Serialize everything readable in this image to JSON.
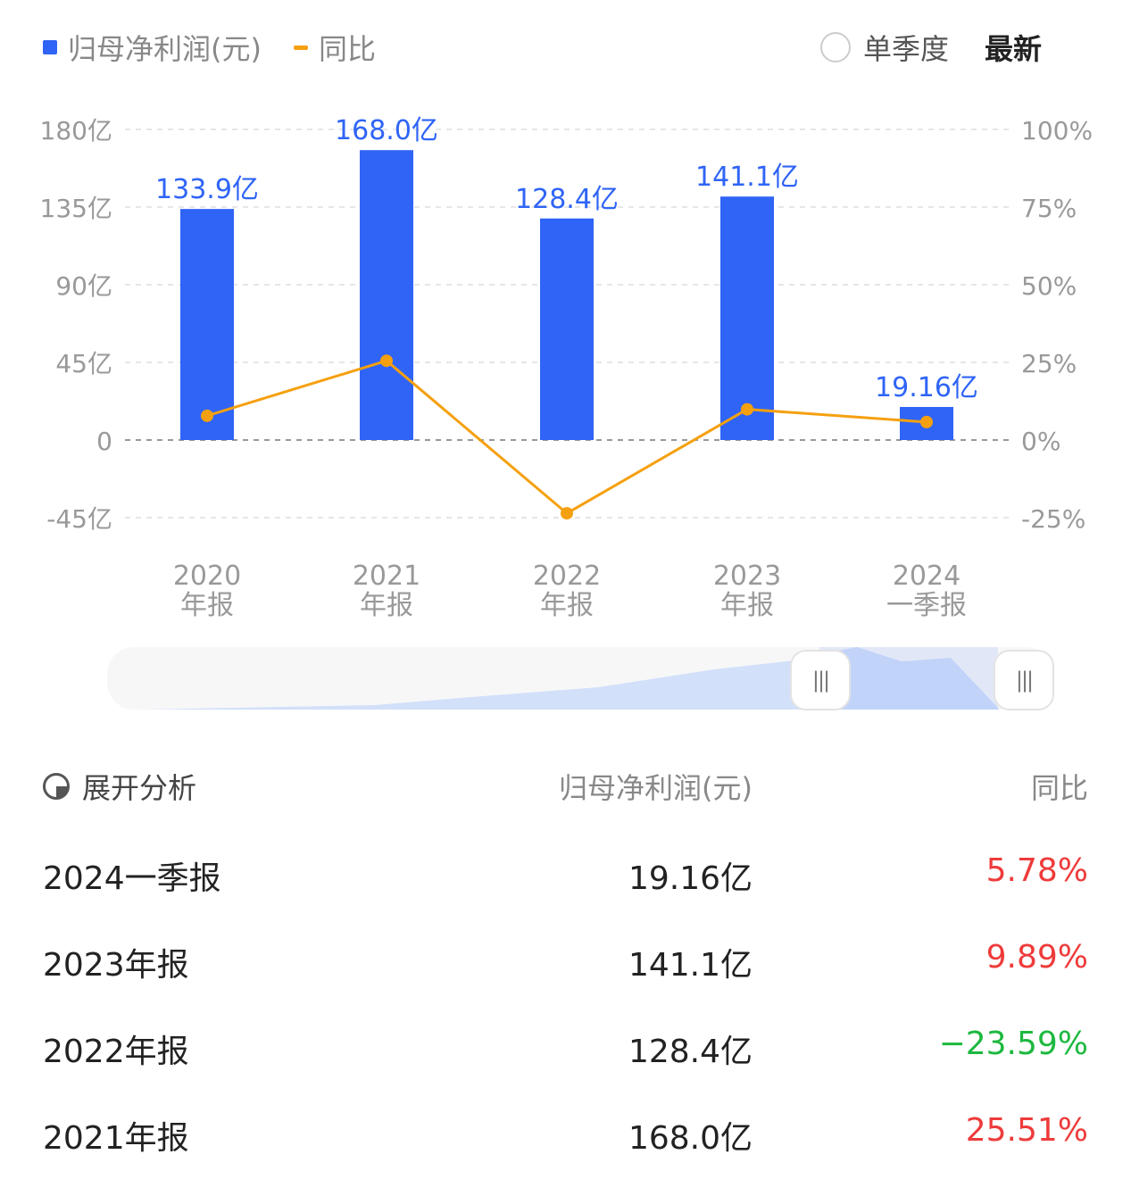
{
  "legend": {
    "bar_label": "归母净利润(元)",
    "line_label": "同比"
  },
  "controls": {
    "quarter_label": "单季度",
    "latest_label": "最新"
  },
  "chart_data": {
    "type": "bar+line",
    "categories": [
      [
        "2020",
        "年报"
      ],
      [
        "2021",
        "年报"
      ],
      [
        "2022",
        "年报"
      ],
      [
        "2023",
        "年报"
      ],
      [
        "2024",
        "一季报"
      ]
    ],
    "series": [
      {
        "name": "归母净利润(元)",
        "type": "bar",
        "values": [
          133.9,
          168.0,
          128.4,
          141.1,
          19.16
        ],
        "labels": [
          "133.9亿",
          "168.0亿",
          "128.4亿",
          "141.1亿",
          "19.16亿"
        ],
        "color": "#2f64f6"
      },
      {
        "name": "同比",
        "type": "line",
        "values": [
          7.8,
          25.51,
          -23.59,
          9.89,
          5.78
        ],
        "color": "#f5a00f"
      }
    ],
    "y_left": {
      "ticks": [
        180,
        135,
        90,
        45,
        0,
        -45
      ],
      "labels": [
        "180亿",
        "135亿",
        "90亿",
        "45亿",
        "0",
        "-45亿"
      ],
      "range": [
        -45,
        180
      ]
    },
    "y_right": {
      "ticks": [
        100,
        75,
        50,
        25,
        0,
        -25
      ],
      "labels": [
        "100%",
        "75%",
        "50%",
        "25%",
        "0%",
        "-25%"
      ],
      "range": [
        -25,
        100
      ]
    },
    "grid": true
  },
  "table": {
    "header": {
      "expand": "展开分析",
      "col2": "归母净利润(元)",
      "col3": "同比"
    },
    "rows": [
      {
        "period": "2024一季报",
        "value": "19.16亿",
        "yoy": "5.78%",
        "color": "#ee3b3b"
      },
      {
        "period": "2023年报",
        "value": "141.1亿",
        "yoy": "9.89%",
        "color": "#ee3b3b"
      },
      {
        "period": "2022年报",
        "value": "128.4亿",
        "yoy": "−23.59%",
        "color": "#1db83f"
      },
      {
        "period": "2021年报",
        "value": "168.0亿",
        "yoy": "25.51%",
        "color": "#ee3b3b"
      }
    ]
  }
}
